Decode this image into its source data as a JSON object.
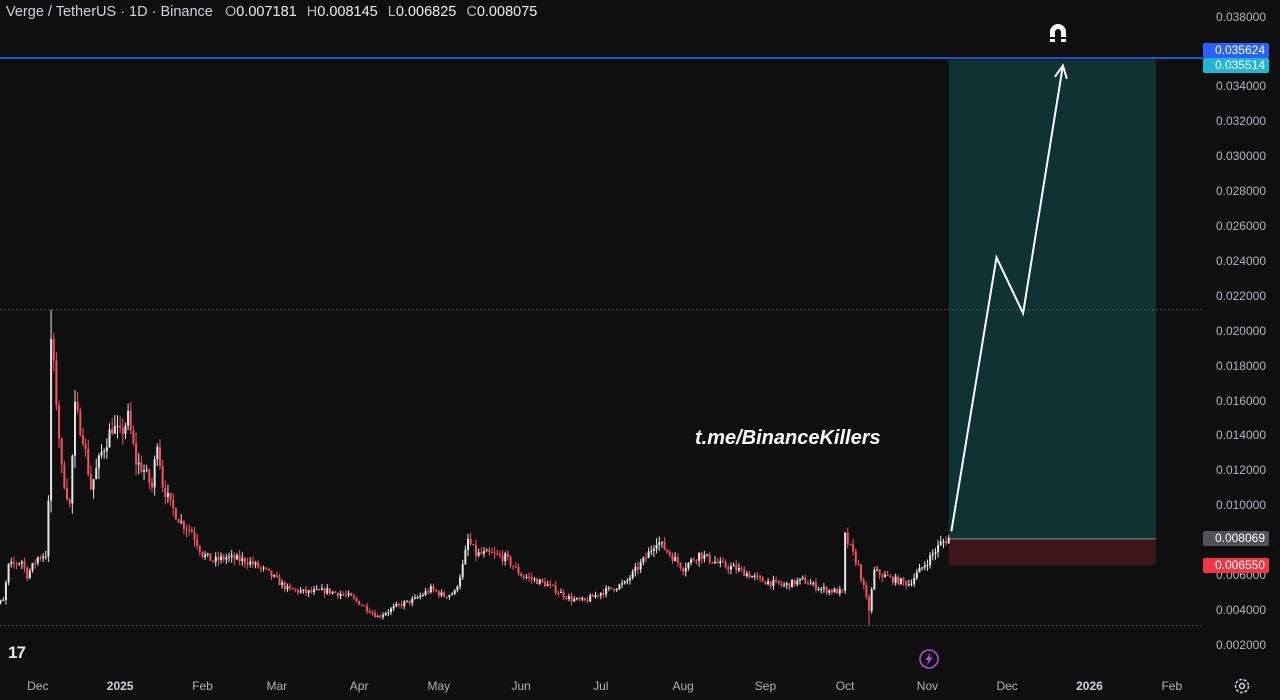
{
  "legend": {
    "symbol": "Verge / TetherUS · 1D · Binance",
    "open_label": "O",
    "open": "0.007181",
    "high_label": "H",
    "high": "0.008145",
    "low_label": "L",
    "low": "0.006825",
    "close_label": "C",
    "close": "0.008075"
  },
  "watermark": "t.me/BinanceKillers",
  "logo_text": "17",
  "price_tags": {
    "alert_price": "0.035624",
    "target_price": "0.035514",
    "entry_price": "0.008069",
    "stop_price": "0.006550"
  },
  "colors": {
    "background": "#0f0f0f",
    "up": "#e6e6e6",
    "down": "#f7525f",
    "alert_line": "#2962ff",
    "target_tag": "#22b5d6",
    "profit_zone": "#0f3232",
    "loss_zone": "#3d161b",
    "stop_tag": "#f23645",
    "entry_tag": "#505258"
  },
  "icons": [
    "magnet-icon",
    "flash-icon",
    "settings-gear-icon",
    "tradingview-logo-icon"
  ],
  "chart_data": {
    "type": "candlestick",
    "title": "Verge / TetherUS · 1D · Binance",
    "y_ticks": [
      "0.038000",
      "0.036000",
      "0.034000",
      "0.032000",
      "0.030000",
      "0.028000",
      "0.026000",
      "0.024000",
      "0.022000",
      "0.020000",
      "0.018000",
      "0.016000",
      "0.014000",
      "0.012000",
      "0.010000",
      "0.008000",
      "0.006000",
      "0.004000",
      "0.002000"
    ],
    "x_ticks": [
      "Dec",
      "2025",
      "Feb",
      "Mar",
      "Apr",
      "May",
      "Jun",
      "Jul",
      "Aug",
      "Sep",
      "Oct",
      "Nov",
      "Dec",
      "2026",
      "Feb"
    ],
    "ylim": [
      0.0,
      0.039
    ],
    "x_range": [
      "2024-11-13",
      "2026-02-12"
    ],
    "grid": false,
    "close_path": [
      [
        "2024-11-13",
        0.0042
      ],
      [
        "2024-11-18",
        0.0045
      ],
      [
        "2024-11-20",
        0.0065
      ],
      [
        "2024-11-25",
        0.0068
      ],
      [
        "2024-11-27",
        0.006
      ],
      [
        "2024-12-01",
        0.007
      ],
      [
        "2024-12-04",
        0.0072
      ],
      [
        "2024-12-05",
        0.01
      ],
      [
        "2024-12-06",
        0.0195
      ],
      [
        "2024-12-08",
        0.016
      ],
      [
        "2024-12-10",
        0.012
      ],
      [
        "2024-12-13",
        0.01
      ],
      [
        "2024-12-15",
        0.0155
      ],
      [
        "2024-12-18",
        0.014
      ],
      [
        "2024-12-21",
        0.011
      ],
      [
        "2024-12-25",
        0.013
      ],
      [
        "2024-12-29",
        0.0145
      ],
      [
        "2025-01-01",
        0.014
      ],
      [
        "2025-01-04",
        0.015
      ],
      [
        "2025-01-07",
        0.0125
      ],
      [
        "2025-01-10",
        0.012
      ],
      [
        "2025-01-13",
        0.011
      ],
      [
        "2025-01-15",
        0.0138
      ],
      [
        "2025-01-17",
        0.0112
      ],
      [
        "2025-01-20",
        0.01
      ],
      [
        "2025-01-24",
        0.009
      ],
      [
        "2025-01-28",
        0.0085
      ],
      [
        "2025-02-01",
        0.0072
      ],
      [
        "2025-02-05",
        0.0068
      ],
      [
        "2025-02-10",
        0.007
      ],
      [
        "2025-02-18",
        0.0068
      ],
      [
        "2025-02-25",
        0.0062
      ],
      [
        "2025-03-01",
        0.0057
      ],
      [
        "2025-03-05",
        0.0052
      ],
      [
        "2025-03-12",
        0.005
      ],
      [
        "2025-03-20",
        0.0051
      ],
      [
        "2025-03-28",
        0.0048
      ],
      [
        "2025-04-03",
        0.0042
      ],
      [
        "2025-04-08",
        0.0036
      ],
      [
        "2025-04-15",
        0.0042
      ],
      [
        "2025-04-22",
        0.0046
      ],
      [
        "2025-04-28",
        0.0052
      ],
      [
        "2025-05-03",
        0.0048
      ],
      [
        "2025-05-07",
        0.005
      ],
      [
        "2025-05-10",
        0.0065
      ],
      [
        "2025-05-12",
        0.008
      ],
      [
        "2025-05-15",
        0.0072
      ],
      [
        "2025-05-20",
        0.0072
      ],
      [
        "2025-05-26",
        0.007
      ],
      [
        "2025-06-01",
        0.006
      ],
      [
        "2025-06-10",
        0.0055
      ],
      [
        "2025-06-20",
        0.0046
      ],
      [
        "2025-06-25",
        0.0045
      ],
      [
        "2025-07-01",
        0.005
      ],
      [
        "2025-07-10",
        0.0055
      ],
      [
        "2025-07-18",
        0.007
      ],
      [
        "2025-07-22",
        0.008
      ],
      [
        "2025-07-27",
        0.0072
      ],
      [
        "2025-08-01",
        0.0064
      ],
      [
        "2025-08-07",
        0.0072
      ],
      [
        "2025-08-15",
        0.0066
      ],
      [
        "2025-08-22",
        0.0063
      ],
      [
        "2025-08-30",
        0.0057
      ],
      [
        "2025-09-08",
        0.0054
      ],
      [
        "2025-09-15",
        0.0057
      ],
      [
        "2025-09-22",
        0.0052
      ],
      [
        "2025-09-30",
        0.005
      ],
      [
        "2025-10-01",
        0.0082
      ],
      [
        "2025-10-06",
        0.0065
      ],
      [
        "2025-10-10",
        0.004
      ],
      [
        "2025-10-12",
        0.0062
      ],
      [
        "2025-10-18",
        0.0058
      ],
      [
        "2025-10-25",
        0.0055
      ],
      [
        "2025-11-01",
        0.0068
      ],
      [
        "2025-11-06",
        0.0078
      ],
      [
        "2025-11-09",
        0.0081
      ]
    ],
    "notable_extremes": {
      "high": [
        "2024-12-06",
        0.0212
      ],
      "low_wick": [
        "2025-10-10",
        0.0031
      ]
    },
    "horizontal_lines": [
      {
        "price": 0.035624,
        "style": "solid",
        "color": "#2962ff"
      },
      {
        "price": 0.0212,
        "style": "dotted"
      },
      {
        "price": 0.0031,
        "style": "dotted"
      }
    ],
    "long_position": {
      "start": "2025-11-09",
      "end": "2026-01-26",
      "entry": 0.008069,
      "stop": 0.00655,
      "target": 0.035514
    },
    "projection_path": [
      [
        "2025-11-10",
        0.0085
      ],
      [
        "2025-11-27",
        0.0242
      ],
      [
        "2025-12-07",
        0.021
      ],
      [
        "2025-12-22",
        0.0352
      ]
    ]
  }
}
